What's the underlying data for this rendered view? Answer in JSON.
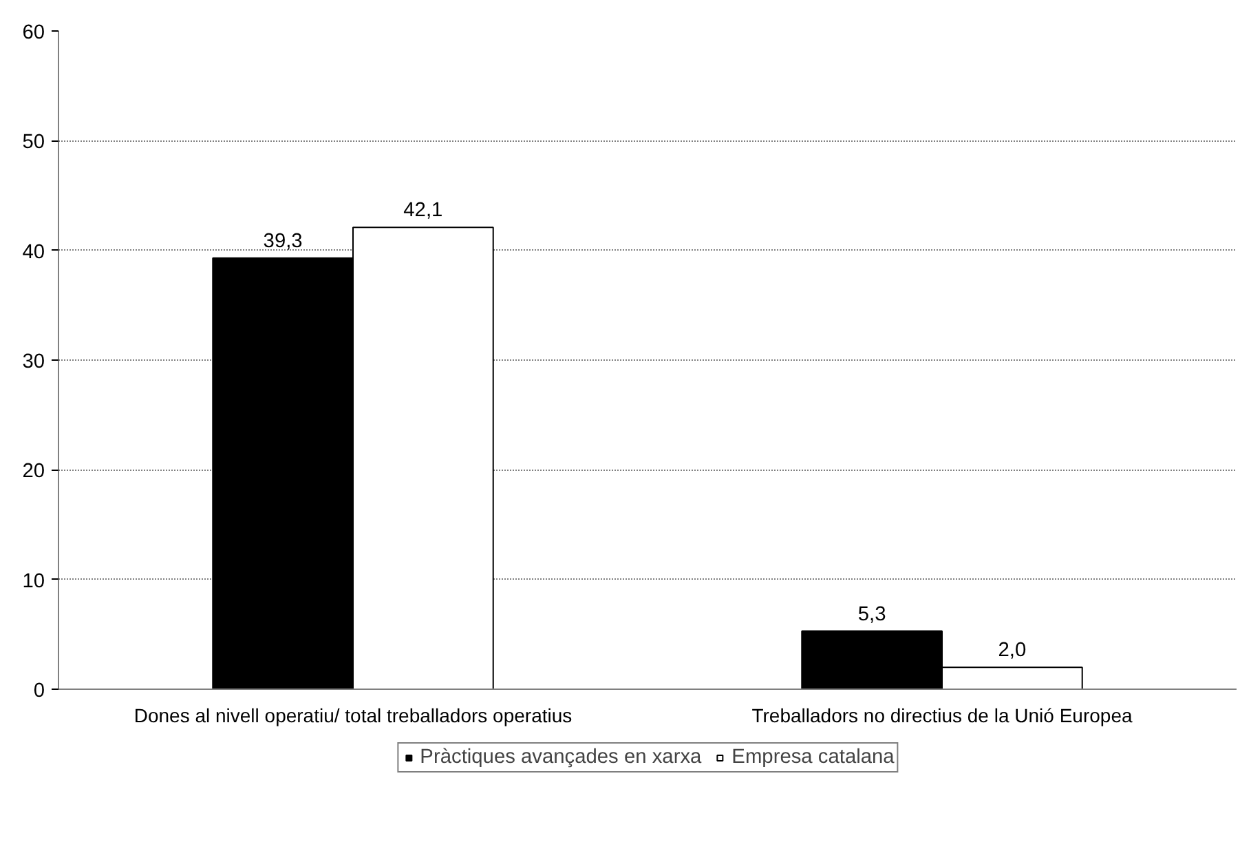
{
  "chart_data": {
    "type": "bar",
    "categories": [
      "Dones al nivell operatiu/ total treballadors operatius",
      "Treballadors no directius de la Unió Europea"
    ],
    "series": [
      {
        "name": "Pràctiques avançades en xarxa",
        "color": "#000000",
        "values": [
          39.3,
          5.3
        ],
        "value_labels": [
          "39,3",
          "5,3"
        ]
      },
      {
        "name": "Empresa catalana",
        "color": "#ffffff",
        "values": [
          42.1,
          2.0
        ],
        "value_labels": [
          "42,1",
          "2,0"
        ]
      }
    ],
    "ylim": [
      0,
      60
    ],
    "yticks": [
      0,
      10,
      20,
      30,
      40,
      50,
      60
    ],
    "grid": "y",
    "legend": "bottom"
  }
}
